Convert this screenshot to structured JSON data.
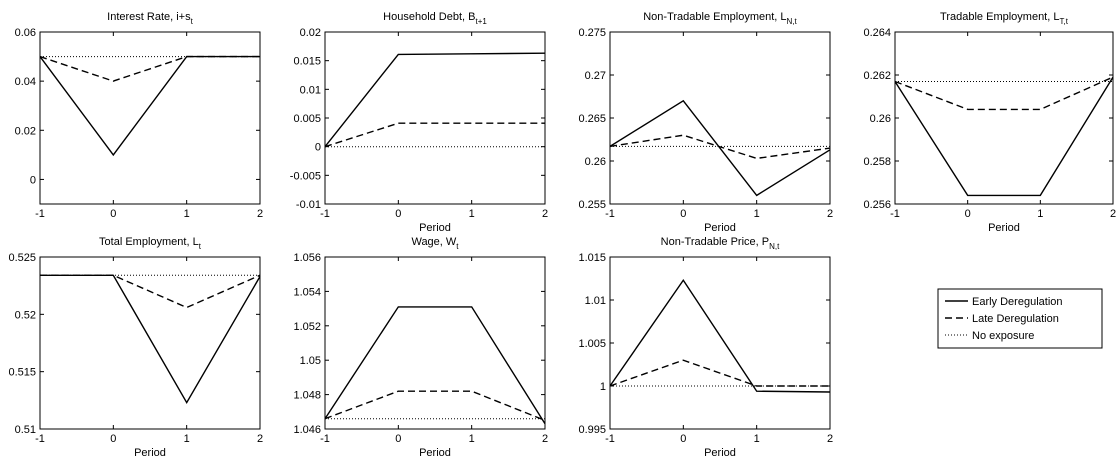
{
  "legend": {
    "entries": [
      "Early Deregulation",
      "Late Deregulation",
      "No exposure"
    ],
    "styles": [
      "solid",
      "dashed",
      "dotted"
    ],
    "color": "#000000"
  },
  "chart_data": [
    {
      "type": "line",
      "title_main": "Interest Rate, i+s",
      "title_sub": "t",
      "xlabel": "",
      "ylabel": "",
      "x": [
        -1,
        0,
        1,
        2
      ],
      "xticks": [
        -1,
        0,
        1,
        2
      ],
      "xlim": [
        -1,
        2
      ],
      "ylim": [
        -0.01,
        0.06
      ],
      "yticks": [
        "0.06",
        "0.04",
        "0.02",
        "0"
      ],
      "ytick_values": [
        0.06,
        0.04,
        0.02,
        0
      ],
      "series": [
        {
          "name": "Early Deregulation",
          "values": [
            0.05,
            0.01,
            0.05,
            0.05
          ]
        },
        {
          "name": "Late Deregulation",
          "values": [
            0.05,
            0.04,
            0.05,
            0.05
          ]
        },
        {
          "name": "No exposure",
          "values": [
            0.05,
            0.05,
            0.05,
            0.05
          ]
        }
      ]
    },
    {
      "type": "line",
      "title_main": "Household Debt, B",
      "title_sub": "t+1",
      "xlabel": "Period",
      "ylabel": "",
      "x": [
        -1,
        0,
        1,
        2
      ],
      "xticks": [
        -1,
        0,
        1,
        2
      ],
      "xlim": [
        -1,
        2
      ],
      "ylim": [
        -0.01,
        0.02
      ],
      "yticks": [
        "0.02",
        "0.015",
        "0.01",
        "0.005",
        "0",
        "-0.005",
        "-0.01"
      ],
      "ytick_values": [
        0.02,
        0.015,
        0.01,
        0.005,
        0,
        -0.005,
        -0.01
      ],
      "series": [
        {
          "name": "Early Deregulation",
          "values": [
            0,
            0.0161,
            0.0162,
            0.0163
          ]
        },
        {
          "name": "Late Deregulation",
          "values": [
            0,
            0.0041,
            0.0041,
            0.0041
          ]
        },
        {
          "name": "No exposure",
          "values": [
            0,
            0,
            0,
            0
          ]
        }
      ]
    },
    {
      "type": "line",
      "title_main": "Non-Tradable Employment, L",
      "title_sub": "N,t",
      "xlabel": "Period",
      "ylabel": "",
      "x": [
        -1,
        0,
        1,
        2
      ],
      "xticks": [
        -1,
        0,
        1,
        2
      ],
      "xlim": [
        -1,
        2
      ],
      "ylim": [
        0.255,
        0.275
      ],
      "yticks": [
        "0.275",
        "0.27",
        "0.265",
        "0.26",
        "0.255"
      ],
      "ytick_values": [
        0.275,
        0.27,
        0.265,
        0.26,
        0.255
      ],
      "series": [
        {
          "name": "Early Deregulation",
          "values": [
            0.2617,
            0.267,
            0.256,
            0.2613
          ]
        },
        {
          "name": "Late Deregulation",
          "values": [
            0.2617,
            0.263,
            0.2603,
            0.2615
          ]
        },
        {
          "name": "No exposure",
          "values": [
            0.2617,
            0.2617,
            0.2617,
            0.2617
          ]
        }
      ]
    },
    {
      "type": "line",
      "title_main": "Tradable Employment, L",
      "title_sub": "T,t",
      "xlabel": "Period",
      "ylabel": "",
      "x": [
        -1,
        0,
        1,
        2
      ],
      "xticks": [
        -1,
        0,
        1,
        2
      ],
      "xlim": [
        -1,
        2
      ],
      "ylim": [
        0.256,
        0.264
      ],
      "yticks": [
        "0.264",
        "0.262",
        "0.26",
        "0.258",
        "0.256"
      ],
      "ytick_values": [
        0.264,
        0.262,
        0.26,
        0.258,
        0.256
      ],
      "series": [
        {
          "name": "Early Deregulation",
          "values": [
            0.2617,
            0.2564,
            0.2564,
            0.2619
          ]
        },
        {
          "name": "Late Deregulation",
          "values": [
            0.2617,
            0.2604,
            0.2604,
            0.2619
          ]
        },
        {
          "name": "No exposure",
          "values": [
            0.2617,
            0.2617,
            0.2617,
            0.2617
          ]
        }
      ]
    },
    {
      "type": "line",
      "title_main": "Total Employment, L",
      "title_sub": "t",
      "xlabel": "Period",
      "ylabel": "",
      "x": [
        -1,
        0,
        1,
        2
      ],
      "xticks": [
        -1,
        0,
        1,
        2
      ],
      "xlim": [
        -1,
        2
      ],
      "ylim": [
        0.51,
        0.525
      ],
      "yticks": [
        "0.525",
        "0.52",
        "0.515",
        "0.51"
      ],
      "ytick_values": [
        0.525,
        0.52,
        0.515,
        0.51
      ],
      "series": [
        {
          "name": "Early Deregulation",
          "values": [
            0.5234,
            0.5234,
            0.5123,
            0.5233
          ]
        },
        {
          "name": "Late Deregulation",
          "values": [
            0.5234,
            0.5234,
            0.5206,
            0.5234
          ]
        },
        {
          "name": "No exposure",
          "values": [
            0.5234,
            0.5234,
            0.5234,
            0.5234
          ]
        }
      ]
    },
    {
      "type": "line",
      "title_main": "Wage, W",
      "title_sub": "t",
      "xlabel": "Period",
      "ylabel": "",
      "x": [
        -1,
        0,
        1,
        2
      ],
      "xticks": [
        -1,
        0,
        1,
        2
      ],
      "xlim": [
        -1,
        2
      ],
      "ylim": [
        1.046,
        1.056
      ],
      "yticks": [
        "1.056",
        "1.054",
        "1.052",
        "1.05",
        "1.048",
        "1.046"
      ],
      "ytick_values": [
        1.056,
        1.054,
        1.052,
        1.05,
        1.048,
        1.046
      ],
      "series": [
        {
          "name": "Early Deregulation",
          "values": [
            1.0466,
            1.0531,
            1.0531,
            1.0463
          ]
        },
        {
          "name": "Late Deregulation",
          "values": [
            1.0466,
            1.0482,
            1.0482,
            1.0465
          ]
        },
        {
          "name": "No exposure",
          "values": [
            1.0466,
            1.0466,
            1.0466,
            1.0466
          ]
        }
      ]
    },
    {
      "type": "line",
      "title_main": "Non-Tradable Price, P",
      "title_sub": "N,t",
      "xlabel": "Period",
      "ylabel": "",
      "x": [
        -1,
        0,
        1,
        2
      ],
      "xticks": [
        -1,
        0,
        1,
        2
      ],
      "xlim": [
        -1,
        2
      ],
      "ylim": [
        0.995,
        1.015
      ],
      "yticks": [
        "1.015",
        "1.01",
        "1.005",
        "1",
        "0.995"
      ],
      "ytick_values": [
        1.015,
        1.01,
        1.005,
        1,
        0.995
      ],
      "series": [
        {
          "name": "Early Deregulation",
          "values": [
            1.0,
            1.0123,
            0.9994,
            0.9993
          ]
        },
        {
          "name": "Late Deregulation",
          "values": [
            1.0,
            1.003,
            1.0,
            1.0
          ]
        },
        {
          "name": "No exposure",
          "values": [
            1.0,
            1.0,
            1.0,
            1.0
          ]
        }
      ]
    }
  ]
}
